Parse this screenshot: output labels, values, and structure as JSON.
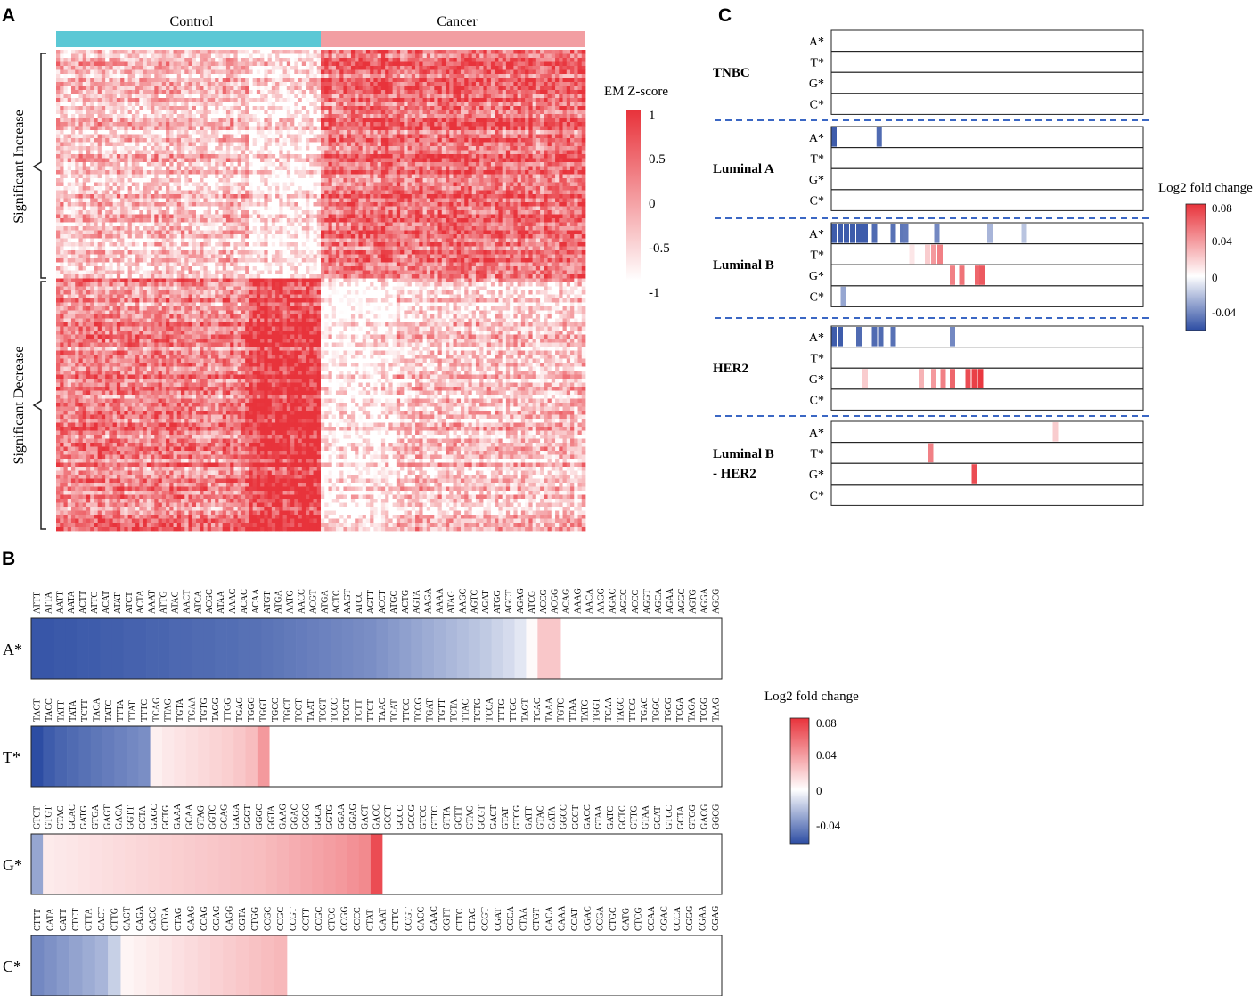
{
  "panels": {
    "a": "A",
    "b": "B",
    "c": "C"
  },
  "panel_a": {
    "groups": [
      {
        "name": "Control",
        "color": "#5bc8d5"
      },
      {
        "name": "Cancer",
        "color": "#f29ea2"
      }
    ],
    "row_groups": [
      "Significant Increase",
      "Significant Decrease"
    ],
    "legend_title": "EM Z-score",
    "legend_ticks": [
      "1",
      "0.5",
      "0",
      "-0.5",
      "-1"
    ],
    "colors": {
      "high": "#e8333b",
      "low": "#ffffff"
    }
  },
  "panel_b": {
    "row_labels": [
      "A*",
      "T*",
      "G*",
      "C*"
    ],
    "legend_title": "Log2 fold change",
    "legend_ticks": [
      "0.08",
      "0.04",
      "0",
      "-0.04"
    ]
  },
  "panel_c": {
    "subtypes": [
      "TNBC",
      "Luminal A",
      "Luminal B",
      "HER2",
      "Luminal B\n- HER2"
    ],
    "row_labels": [
      "A*",
      "T*",
      "G*",
      "C*"
    ],
    "legend_title": "Log2 fold change",
    "legend_ticks": [
      "0.08",
      "0.04",
      "0",
      "-0.04"
    ]
  },
  "chart_data": [
    {
      "type": "heatmap",
      "panel": "A",
      "title": "",
      "columns_groups": [
        "Control",
        "Cancer"
      ],
      "row_groups": [
        "Significant Increase",
        "Significant Decrease"
      ],
      "colorbar": {
        "label": "EM Z-score",
        "range": [
          -1,
          1
        ],
        "ticks": [
          1,
          0.5,
          0,
          -0.5,
          -1
        ]
      },
      "note": "Individual cell values not legible; rendered as procedural texture"
    },
    {
      "type": "heatmap",
      "panel": "B",
      "colorbar": {
        "label": "Log2 fold change",
        "range": [
          -0.06,
          0.08
        ],
        "ticks": [
          0.08,
          0.04,
          0,
          -0.04
        ]
      },
      "rows": [
        {
          "label": "A*",
          "motifs": [
            "ATTT",
            "ATTA",
            "AATT",
            "AATA",
            "ACTT",
            "ATTC",
            "ACAT",
            "ATAT",
            "ATCT",
            "ACTA",
            "AAAT",
            "ATTG",
            "ATAC",
            "AACT",
            "ATCA",
            "ACGC",
            "ATAA",
            "AAAC",
            "ACAC",
            "ACAA",
            "ATGT",
            "ATGA",
            "AATG",
            "AACC",
            "ACGT",
            "ATGA",
            "ACTC",
            "AAGT",
            "ATCC",
            "AGTT",
            "ACCT",
            "ATGC",
            "ACTG",
            "AGTA",
            "AAGA",
            "AAAA",
            "ATAG",
            "AAGC",
            "AGTC",
            "AGAT",
            "ATGG",
            "AGCT",
            "AGAG",
            "ATCG",
            "ACCG",
            "ACGG",
            "ACAG",
            "AAAG",
            "AACA",
            "AAGG",
            "AGAC",
            "AGCC",
            "ACCC",
            "AGGT",
            "AGCA",
            "AGAA",
            "AGGC",
            "AGTG",
            "AGGA",
            "AGCG"
          ],
          "values": [
            -0.057,
            -0.057,
            -0.056,
            -0.056,
            -0.055,
            -0.055,
            -0.054,
            -0.054,
            -0.053,
            -0.053,
            -0.052,
            -0.052,
            -0.051,
            -0.051,
            -0.05,
            -0.05,
            -0.049,
            -0.049,
            -0.048,
            -0.048,
            -0.047,
            -0.046,
            -0.045,
            -0.044,
            -0.043,
            -0.042,
            -0.041,
            -0.04,
            -0.039,
            -0.038,
            -0.036,
            -0.034,
            -0.032,
            -0.03,
            -0.028,
            -0.026,
            -0.024,
            -0.022,
            -0.02,
            -0.018,
            -0.015,
            -0.012,
            -0.008,
            0.002,
            0.022,
            0.022,
            null,
            null,
            null,
            null,
            null,
            null,
            null,
            null,
            null,
            null,
            null,
            null,
            null,
            null
          ]
        },
        {
          "label": "T*",
          "motifs": [
            "TACT",
            "TACC",
            "TATT",
            "TATA",
            "TCTT",
            "TACA",
            "TATC",
            "TTTA",
            "TTAT",
            "TTTC",
            "TCAG",
            "TTAG",
            "TGTA",
            "TGAA",
            "TGTG",
            "TAGG",
            "TTGG",
            "TGAG",
            "TGGG",
            "TGGT",
            "TGCC",
            "TGCT",
            "TCCT",
            "TAAT",
            "TCGT",
            "TCCC",
            "TCGT",
            "TCTT",
            "TTCT",
            "TAAC",
            "TCAT",
            "TTCC",
            "TCCG",
            "TGAT",
            "TGTT",
            "TCTA",
            "TTAC",
            "TCTG",
            "TCCA",
            "TTTG",
            "TTGC",
            "TAGT",
            "TCAC",
            "TAAA",
            "TGTC",
            "TTAA",
            "TATG",
            "TGGT",
            "TCAA",
            "TAGC",
            "TTCG",
            "TGAC",
            "TGGC",
            "TGCG",
            "TCGA",
            "TAGA",
            "TCGG",
            "TAAG"
          ],
          "values": [
            -0.06,
            -0.055,
            -0.052,
            -0.05,
            -0.048,
            -0.046,
            -0.044,
            -0.042,
            -0.04,
            -0.038,
            0.006,
            0.009,
            0.011,
            0.013,
            0.015,
            0.017,
            0.019,
            0.022,
            0.026,
            0.04,
            null,
            null,
            null,
            null,
            null,
            null,
            null,
            null,
            null,
            null,
            null,
            null,
            null,
            null,
            null,
            null,
            null,
            null,
            null,
            null,
            null,
            null,
            null,
            null,
            null,
            null,
            null,
            null,
            null,
            null,
            null,
            null,
            null,
            null,
            null,
            null,
            null,
            null
          ]
        },
        {
          "label": "G*",
          "motifs": [
            "GTCT",
            "GTGT",
            "GTAC",
            "GCAC",
            "GATG",
            "GTGA",
            "GAGT",
            "GACA",
            "GGTT",
            "GCTA",
            "GAGC",
            "GCTG",
            "GAAA",
            "GCAA",
            "GTAG",
            "GGTC",
            "GCAG",
            "GAGA",
            "GGGT",
            "GGGC",
            "GGTA",
            "GAAG",
            "GGAC",
            "GGGG",
            "GGCA",
            "GGTG",
            "GGAA",
            "GGAG",
            "GACT",
            "GACC",
            "GCCT",
            "GCCC",
            "GCCG",
            "GTCC",
            "GTTC",
            "GTTA",
            "GCTT",
            "GTAC",
            "GCGT",
            "GACT",
            "GTAT",
            "GTCG",
            "GATT",
            "GTAC",
            "GATA",
            "GGCC",
            "GCGT",
            "GACC",
            "GTAA",
            "GATC",
            "GCTC",
            "GTTG",
            "GTAA",
            "GCAT",
            "GTGC",
            "GCTA",
            "GTGG",
            "GACG",
            "GGCG"
          ],
          "values": [
            -0.03,
            0.008,
            0.009,
            0.01,
            0.011,
            0.012,
            0.013,
            0.014,
            0.015,
            0.016,
            0.017,
            0.018,
            0.019,
            0.02,
            0.021,
            0.022,
            0.023,
            0.024,
            0.025,
            0.026,
            0.028,
            0.03,
            0.032,
            0.034,
            0.036,
            0.038,
            0.04,
            0.043,
            0.046,
            0.07,
            null,
            null,
            null,
            null,
            null,
            null,
            null,
            null,
            null,
            null,
            null,
            null,
            null,
            null,
            null,
            null,
            null,
            null,
            null,
            null,
            null,
            null,
            null,
            null,
            null,
            null,
            null,
            null,
            null
          ]
        },
        {
          "label": "C*",
          "motifs": [
            "CTTT",
            "CATA",
            "CATT",
            "CTCT",
            "CTTA",
            "CACT",
            "CTTG",
            "CAGT",
            "CAGA",
            "CACC",
            "CTGA",
            "CTAG",
            "CAAG",
            "CCAG",
            "CGAG",
            "CAGG",
            "CGTA",
            "CTGG",
            "CCGC",
            "CCGC",
            "CCGT",
            "CCTT",
            "CCGC",
            "CTCC",
            "CCGG",
            "CCCC",
            "CTAT",
            "CAAT",
            "CTTC",
            "CCGT",
            "CACC",
            "CAAC",
            "CGTT",
            "CTTC",
            "CTAC",
            "CCGT",
            "CGAT",
            "CGCA",
            "CTAA",
            "CTGT",
            "CACA",
            "CAAA",
            "CCAT",
            "CGAC",
            "CCGA",
            "CTGC",
            "CATG",
            "CTCG",
            "CCAA",
            "CGAC",
            "CCCA",
            "CGGG",
            "CGAA",
            "CGAG"
          ],
          "values": [
            -0.04,
            -0.037,
            -0.034,
            -0.031,
            -0.028,
            -0.025,
            -0.016,
            0.004,
            0.006,
            0.008,
            0.01,
            0.012,
            0.014,
            0.016,
            0.018,
            0.02,
            0.022,
            0.024,
            0.026,
            0.028,
            null,
            null,
            null,
            null,
            null,
            null,
            null,
            null,
            null,
            null,
            null,
            null,
            null,
            null,
            null,
            null,
            null,
            null,
            null,
            null,
            null,
            null,
            null,
            null,
            null,
            null,
            null,
            null,
            null,
            null,
            null,
            null,
            null,
            null
          ]
        }
      ]
    },
    {
      "type": "heatmap",
      "panel": "C",
      "colorbar": {
        "label": "Log2 fold change",
        "range": [
          -0.06,
          0.08
        ],
        "ticks": [
          0.08,
          0.04,
          0,
          -0.04
        ]
      },
      "subtypes": [
        {
          "name": "TNBC",
          "rows": {
            "A*": [],
            "T*": [],
            "G*": [],
            "C*": []
          }
        },
        {
          "name": "Luminal A",
          "rows": {
            "A*": [
              [
                0.0,
                -0.055
              ],
              [
                0.145,
                -0.05
              ]
            ],
            "T*": [],
            "G*": [],
            "C*": []
          }
        },
        {
          "name": "Luminal B",
          "rows": {
            "A*": [
              [
                0.0,
                -0.055
              ],
              [
                0.02,
                -0.055
              ],
              [
                0.04,
                -0.055
              ],
              [
                0.06,
                -0.055
              ],
              [
                0.08,
                -0.055
              ],
              [
                0.1,
                -0.055
              ],
              [
                0.13,
                -0.05
              ],
              [
                0.19,
                -0.048
              ],
              [
                0.22,
                -0.046
              ],
              [
                0.23,
                -0.045
              ],
              [
                0.33,
                -0.04
              ],
              [
                0.5,
                -0.025
              ],
              [
                0.61,
                -0.02
              ]
            ],
            "T*": [
              [
                0.25,
                0.01
              ],
              [
                0.3,
                0.02
              ],
              [
                0.32,
                0.04
              ],
              [
                0.34,
                0.05
              ]
            ],
            "G*": [
              [
                0.38,
                0.05
              ],
              [
                0.41,
                0.055
              ],
              [
                0.46,
                0.06
              ],
              [
                0.475,
                0.065
              ]
            ],
            "C*": [
              [
                0.03,
                -0.03
              ]
            ]
          }
        },
        {
          "name": "HER2",
          "rows": {
            "A*": [
              [
                0.0,
                -0.055
              ],
              [
                0.02,
                -0.055
              ],
              [
                0.08,
                -0.05
              ],
              [
                0.13,
                -0.05
              ],
              [
                0.15,
                -0.05
              ],
              [
                0.19,
                -0.048
              ],
              [
                0.38,
                -0.04
              ]
            ],
            "T*": [],
            "G*": [
              [
                0.1,
                0.02
              ],
              [
                0.28,
                0.03
              ],
              [
                0.32,
                0.04
              ],
              [
                0.35,
                0.05
              ],
              [
                0.38,
                0.06
              ],
              [
                0.43,
                0.07
              ],
              [
                0.45,
                0.075
              ],
              [
                0.47,
                0.078
              ]
            ],
            "C*": []
          }
        },
        {
          "name": "Luminal B - HER2",
          "rows": {
            "A*": [
              [
                0.71,
                0.02
              ]
            ],
            "T*": [
              [
                0.31,
                0.05
              ]
            ],
            "G*": [
              [
                0.45,
                0.07
              ]
            ],
            "C*": []
          }
        }
      ]
    }
  ]
}
